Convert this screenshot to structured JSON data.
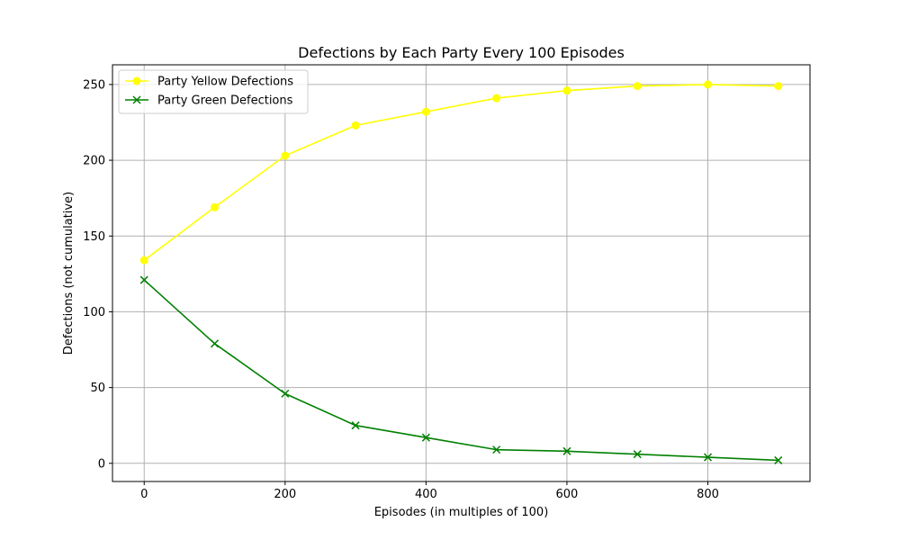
{
  "chart_data": {
    "type": "line",
    "title": "Defections by Each Party Every 100 Episodes",
    "xlabel": "Episodes (in multiples of 100)",
    "ylabel": "Defections (not cumulative)",
    "x": [
      0,
      100,
      200,
      300,
      400,
      500,
      600,
      700,
      800,
      900
    ],
    "xlim": [
      -45,
      945
    ],
    "ylim": [
      -12,
      263
    ],
    "xticks": [
      0,
      200,
      400,
      600,
      800
    ],
    "yticks": [
      0,
      50,
      100,
      150,
      200,
      250
    ],
    "grid": true,
    "legend_position": "top-left",
    "series": [
      {
        "name": "Party Yellow Defections",
        "color": "#ffff00",
        "marker": "circle",
        "values": [
          134,
          169,
          203,
          223,
          232,
          241,
          246,
          249,
          250,
          249
        ]
      },
      {
        "name": "Party Green Defections",
        "color": "#008000",
        "marker": "x",
        "values": [
          121,
          79,
          46,
          25,
          17,
          9,
          8,
          6,
          4,
          2
        ]
      }
    ]
  }
}
